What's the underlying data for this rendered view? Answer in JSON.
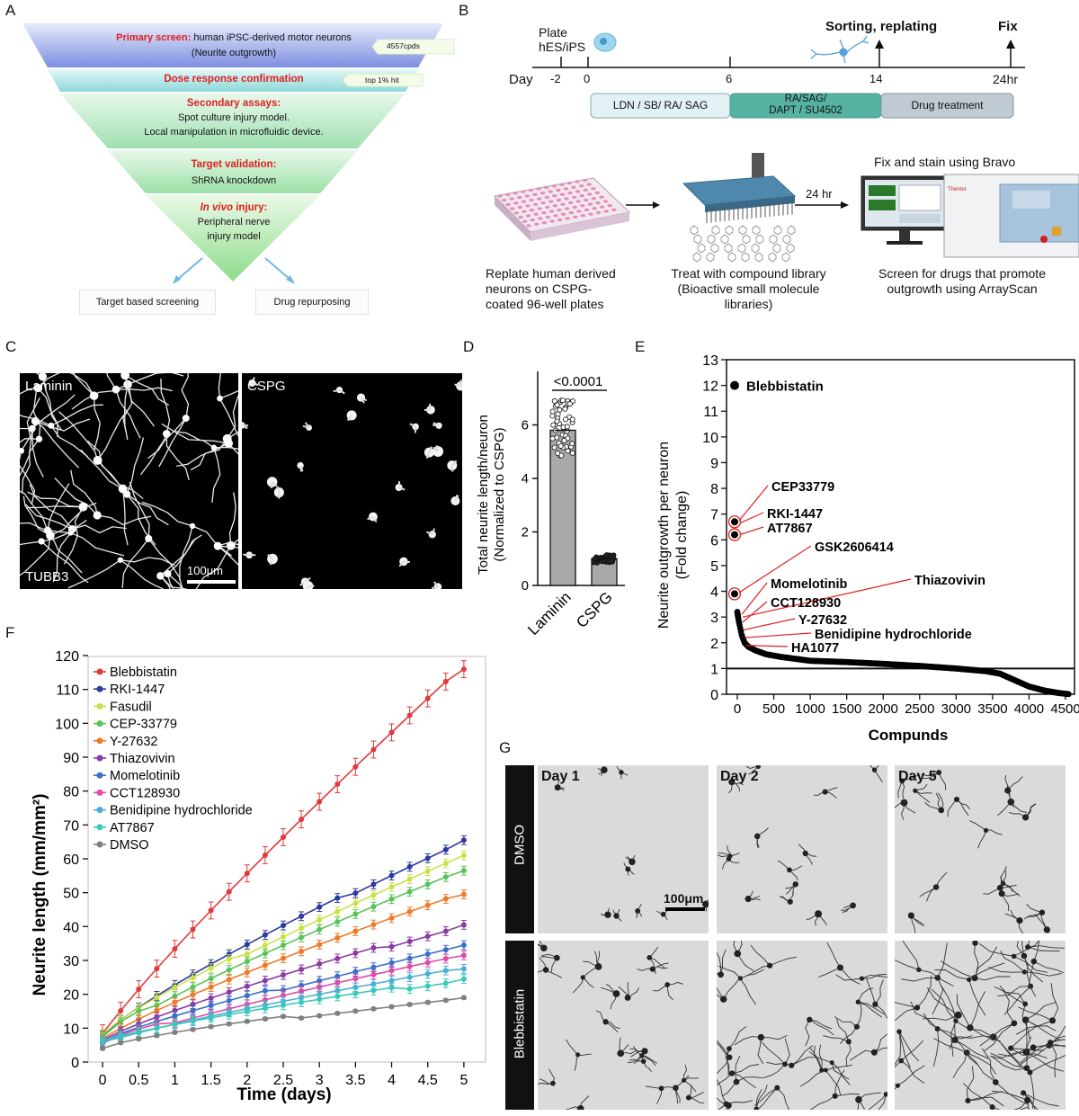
{
  "panel_labels": {
    "a": "A",
    "b": "B",
    "c": "C",
    "d": "D",
    "e": "E",
    "f": "F",
    "g": "G"
  },
  "panelA": {
    "levels": [
      {
        "red": "Primary screen:",
        "black": " human iPSC-derived motor neurons",
        "line2": "(Neurite outgrowth)"
      },
      {
        "red": "Dose response confirmation"
      },
      {
        "red": "Secondary assays:",
        "line2": "Spot culture injury model.",
        "line3": "Local manipulation in microfluidic device."
      },
      {
        "red": "Target validation:",
        "line2": "ShRNA knockdown"
      },
      {
        "red_italic": "In vivo",
        "red": " injury:",
        "line2": "Peripheral nerve",
        "line3": "injury model"
      }
    ],
    "tag_cpds": "4557cpds",
    "tag_hit": "top 1% hit",
    "box_left": "Target based screening",
    "box_right": "Drug repurposing"
  },
  "panelB": {
    "plate_label1": "Plate",
    "plate_label2": "hES/iPS",
    "sorting": "Sorting,  replating",
    "fix": "Fix",
    "day_label": "Day",
    "days": [
      "-2",
      "0",
      "6",
      "14",
      "24hr"
    ],
    "bar1": "LDN / SB/ RA/ SAG",
    "bar2a": "RA/SAG/",
    "bar2b": "DAPT / SU4502",
    "bar3": "Drug treatment",
    "fix_stain": "Fix and stain using Bravo",
    "arrow_24": "24 hr",
    "cap1": [
      "Replate human derived",
      "neurons on CSPG-",
      "coated 96-well plates"
    ],
    "cap2": [
      "Treat with compound library",
      "(Bioactive small molecule",
      "libraries)"
    ],
    "cap3": [
      "Screen for drugs that promote",
      "outgrowth using ArrayScan"
    ],
    "thermo": "Thermo"
  },
  "panelC": {
    "left": "Laminin",
    "right": "CSPG",
    "stain": "TUBB3",
    "scale": "100μm"
  },
  "panelD": {
    "ylabel1": "Total neurite length/neuron",
    "ylabel2": "(Normalized to CSPG)",
    "pval": "<0.0001",
    "chart_data": {
      "type": "bar",
      "categories": [
        "Laminin",
        "CSPG"
      ],
      "values": [
        5.8,
        1.0
      ],
      "ylim": [
        0,
        8
      ],
      "yticks": [
        0,
        2,
        4,
        6
      ]
    }
  },
  "panelE": {
    "ylabel1": "Neurite outgrowth per neuron",
    "ylabel2": "(Fold change)",
    "xlabel": "Compunds",
    "chart_data": {
      "type": "scatter",
      "xlim": [
        0,
        4500
      ],
      "ylim": [
        0,
        13
      ],
      "xticks": [
        0,
        500,
        1000,
        1500,
        2000,
        2500,
        3000,
        3500,
        4000,
        4500
      ],
      "yticks": [
        0,
        1,
        2,
        3,
        4,
        5,
        6,
        7,
        8,
        9,
        10,
        11,
        12,
        13
      ],
      "reference_line": 1,
      "curve": [
        [
          0,
          3.2
        ],
        [
          10,
          3.0
        ],
        [
          30,
          2.7
        ],
        [
          60,
          2.3
        ],
        [
          100,
          2.0
        ],
        [
          150,
          1.85
        ],
        [
          250,
          1.7
        ],
        [
          400,
          1.55
        ],
        [
          600,
          1.45
        ],
        [
          1000,
          1.3
        ],
        [
          1500,
          1.25
        ],
        [
          2000,
          1.18
        ],
        [
          2500,
          1.1
        ],
        [
          3000,
          1.0
        ],
        [
          3400,
          0.9
        ],
        [
          3600,
          0.8
        ],
        [
          3800,
          0.55
        ],
        [
          4000,
          0.3
        ],
        [
          4200,
          0.15
        ],
        [
          4400,
          0.05
        ],
        [
          4557,
          0.0
        ]
      ],
      "highlighted": [
        {
          "name": "Blebbistatin",
          "x": 0,
          "y": 12
        },
        {
          "name": "CEP33779",
          "x": 0,
          "y": 6.7
        },
        {
          "name": "AT7867",
          "x": 0,
          "y": 6.2
        },
        {
          "name": "GSK2606414",
          "x": 0,
          "y": 3.9
        }
      ],
      "annotations": [
        "Blebbistatin",
        "CEP33779",
        "RKI-1447",
        "AT7867",
        "GSK2606414",
        "Momelotinib",
        "Thiazovivin",
        "CCT128930",
        "Y-27632",
        "Benidipine hydrochloride",
        "HA1077"
      ]
    }
  },
  "panelF": {
    "ylabel": "Neurite length (mm/mm²)",
    "xlabel": "Time (days)",
    "chart_data": {
      "type": "line",
      "xlim": [
        -0.2,
        5.3
      ],
      "ylim": [
        0,
        120
      ],
      "xticks": [
        "0",
        "0.5",
        "1",
        "1.5",
        "2",
        "2.5",
        "3",
        "3.5",
        "4",
        "4.5",
        "5"
      ],
      "yticks": [
        0,
        10,
        20,
        30,
        40,
        50,
        60,
        70,
        80,
        90,
        100,
        110,
        120
      ],
      "series": [
        {
          "name": "Blebbistatin",
          "color": "#e03a3a",
          "end": 116
        },
        {
          "name": "RKI-1447",
          "color": "#2b3a9e",
          "end": 65.5
        },
        {
          "name": "Fasudil",
          "color": "#c9e04a",
          "end": 61
        },
        {
          "name": "CEP-33779",
          "color": "#5ac25a",
          "end": 56.5
        },
        {
          "name": "Y-27632",
          "color": "#f07a28",
          "end": 49.5
        },
        {
          "name": "Thiazovivin",
          "color": "#8a3aa0",
          "end": 40.5
        },
        {
          "name": "Momelotinib",
          "color": "#3a70c8",
          "end": 34.5
        },
        {
          "name": "CCT128930",
          "color": "#e04aa8",
          "end": 31.5
        },
        {
          "name": "Benidipine hydrochloride",
          "color": "#4aaed6",
          "end": 27.5
        },
        {
          "name": "AT7867",
          "color": "#3ac9b8",
          "end": 24.5
        },
        {
          "name": "DMSO",
          "color": "#808080",
          "end": 19
        }
      ]
    }
  },
  "panelG": {
    "cols": [
      "Day 1",
      "Day 2",
      "Day 5"
    ],
    "rows": [
      "DMSO",
      "Blebbistatin"
    ],
    "scale": "100μm"
  }
}
